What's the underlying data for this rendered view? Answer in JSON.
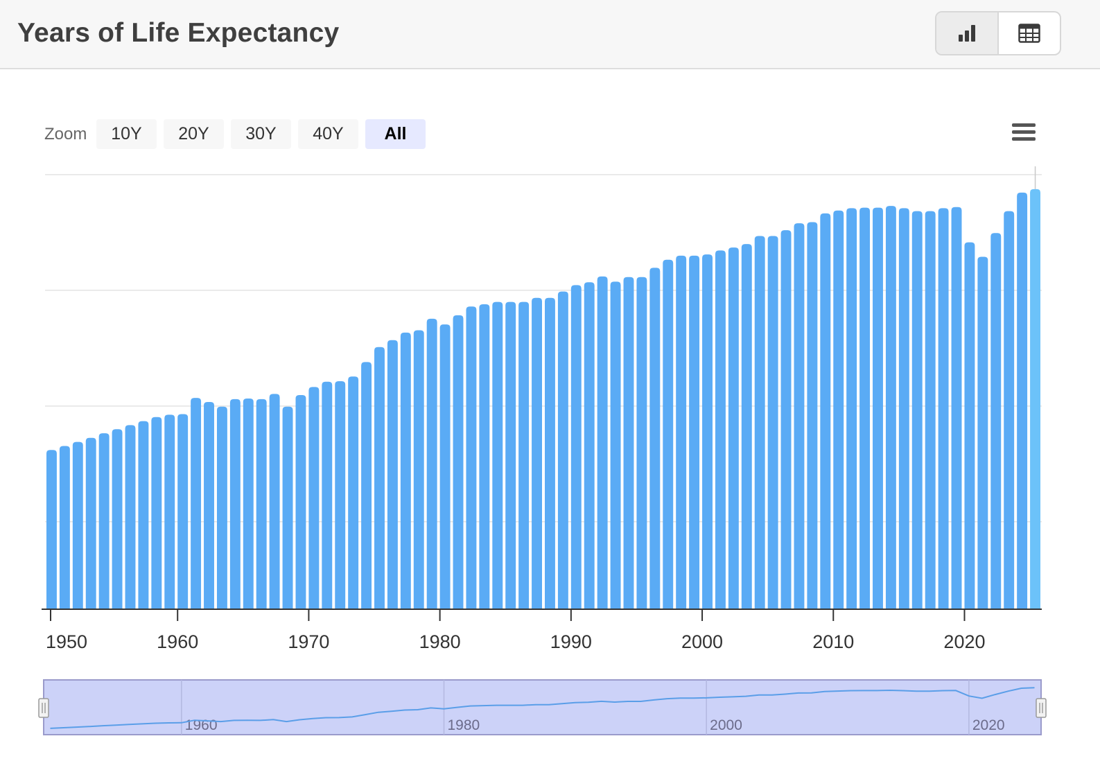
{
  "header": {
    "title": "Years of Life Expectancy",
    "chart_view_icon": "bar-chart-icon",
    "table_view_icon": "table-icon"
  },
  "zoom": {
    "label": "Zoom",
    "buttons": [
      "10Y",
      "20Y",
      "30Y",
      "40Y",
      "All"
    ],
    "active": "All"
  },
  "menu_icon": "hamburger-menu-icon",
  "colors": {
    "bar": "#5aabf5",
    "bar_highlight": "#6cc2f9",
    "navigator_fill": "#ccd2f8",
    "navigator_line": "#5a9ee8",
    "grid": "#e3e3e3"
  },
  "chart_data": {
    "type": "bar",
    "title": "",
    "xlabel": "",
    "ylabel": "",
    "x_tick_labels": [
      "1950",
      "1960",
      "1970",
      "1980",
      "1990",
      "2000",
      "2010",
      "2020"
    ],
    "navigator_labels": [
      "1960",
      "1980",
      "2000",
      "2020"
    ],
    "ylim": [
      0,
      75
    ],
    "y_gridlines": [
      15,
      35,
      55,
      75
    ],
    "grid": true,
    "legend": "none",
    "x": [
      1950,
      1951,
      1952,
      1953,
      1954,
      1955,
      1956,
      1957,
      1958,
      1959,
      1960,
      1961,
      1962,
      1963,
      1964,
      1965,
      1966,
      1967,
      1968,
      1969,
      1970,
      1971,
      1972,
      1973,
      1974,
      1975,
      1976,
      1977,
      1978,
      1979,
      1980,
      1981,
      1982,
      1983,
      1984,
      1985,
      1986,
      1987,
      1988,
      1989,
      1990,
      1991,
      1992,
      1993,
      1994,
      1995,
      1996,
      1997,
      1998,
      1999,
      2000,
      2001,
      2002,
      2003,
      2004,
      2005,
      2006,
      2007,
      2008,
      2009,
      2010,
      2011,
      2012,
      2013,
      2014,
      2015,
      2016,
      2017,
      2018,
      2019,
      2020,
      2021,
      2022,
      2023,
      2024,
      2025
    ],
    "values": [
      27.4,
      28.1,
      28.8,
      29.5,
      30.3,
      31.0,
      31.7,
      32.4,
      33.1,
      33.5,
      33.6,
      36.4,
      35.7,
      34.9,
      36.2,
      36.3,
      36.2,
      37.1,
      34.9,
      36.9,
      38.3,
      39.2,
      39.3,
      40.1,
      42.6,
      45.2,
      46.4,
      47.7,
      48.1,
      50.1,
      49.1,
      50.7,
      52.2,
      52.6,
      53.0,
      53.0,
      53.0,
      53.7,
      53.7,
      54.8,
      55.9,
      56.4,
      57.4,
      56.5,
      57.3,
      57.3,
      58.9,
      60.3,
      61.0,
      61.0,
      61.2,
      61.9,
      62.4,
      63.0,
      64.4,
      64.4,
      65.4,
      66.6,
      66.8,
      68.3,
      68.8,
      69.2,
      69.3,
      69.3,
      69.6,
      69.2,
      68.7,
      68.7,
      69.2,
      69.4,
      63.3,
      60.8,
      64.9,
      68.7,
      71.9,
      72.5
    ]
  }
}
